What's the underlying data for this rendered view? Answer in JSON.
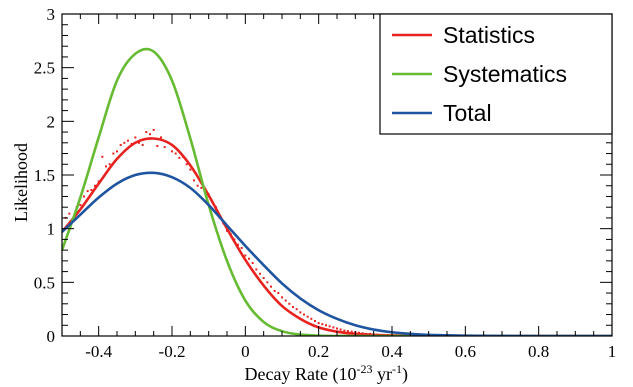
{
  "chart_data": {
    "type": "line",
    "xlabel": "Decay Rate (10",
    "xlabel_exp1": "-23",
    "xlabel_mid": " yr",
    "xlabel_exp2": "-1",
    "xlabel_end": ")",
    "ylabel": "Likelihood",
    "xlim": [
      -0.5,
      1.0
    ],
    "ylim": [
      0,
      3
    ],
    "xticks": [
      -0.4,
      -0.2,
      0,
      0.2,
      0.4,
      0.6,
      0.8,
      1
    ],
    "xtick_labels": [
      "-0.4",
      "-0.2",
      "0",
      "0.2",
      "0.4",
      "0.6",
      "0.8",
      "1"
    ],
    "yticks": [
      0,
      0.5,
      1,
      1.5,
      2,
      2.5,
      3
    ],
    "ytick_labels": [
      "0",
      "0.5",
      "1",
      "1.5",
      "2",
      "2.5",
      "3"
    ],
    "legend_position": "top-right",
    "legend": [
      "Statistics",
      "Systematics",
      "Total"
    ],
    "series": [
      {
        "name": "Statistics",
        "color": "#e8221f",
        "x": [
          -0.5,
          -0.45,
          -0.4,
          -0.35,
          -0.3,
          -0.25,
          -0.2,
          -0.15,
          -0.1,
          -0.05,
          0.0,
          0.05,
          0.1,
          0.15,
          0.2,
          0.25,
          0.3,
          0.35,
          0.4,
          0.45,
          0.5,
          0.6,
          0.7,
          0.8,
          0.9,
          1.0
        ],
        "y": [
          0.97,
          1.18,
          1.42,
          1.65,
          1.8,
          1.84,
          1.78,
          1.59,
          1.31,
          1.0,
          0.71,
          0.47,
          0.28,
          0.16,
          0.08,
          0.04,
          0.02,
          0.01,
          0.005,
          0.002,
          0.001,
          0.0,
          0.0,
          0.0,
          0.0,
          0.0
        ]
      },
      {
        "name": "Systematics",
        "color": "#66bb33",
        "x": [
          -0.5,
          -0.45,
          -0.4,
          -0.35,
          -0.3,
          -0.25,
          -0.2,
          -0.15,
          -0.1,
          -0.05,
          0.0,
          0.05,
          0.1,
          0.15,
          0.2,
          0.25,
          0.3,
          0.4,
          0.5,
          0.6,
          0.7,
          0.8,
          0.9,
          1.0
        ],
        "y": [
          0.8,
          1.29,
          1.85,
          2.38,
          2.63,
          2.65,
          2.38,
          1.84,
          1.22,
          0.7,
          0.33,
          0.13,
          0.045,
          0.013,
          0.003,
          0.001,
          0.0,
          0.0,
          0.0,
          0.0,
          0.0,
          0.0,
          0.0,
          0.0
        ]
      },
      {
        "name": "Total",
        "color": "#1f55a0",
        "x": [
          -0.5,
          -0.45,
          -0.4,
          -0.35,
          -0.3,
          -0.25,
          -0.2,
          -0.15,
          -0.1,
          -0.05,
          0.0,
          0.05,
          0.1,
          0.15,
          0.2,
          0.25,
          0.3,
          0.35,
          0.4,
          0.45,
          0.5,
          0.6,
          0.7,
          0.8,
          0.9,
          1.0
        ],
        "y": [
          0.97,
          1.13,
          1.29,
          1.42,
          1.5,
          1.52,
          1.48,
          1.38,
          1.22,
          1.03,
          0.84,
          0.66,
          0.49,
          0.35,
          0.24,
          0.16,
          0.1,
          0.06,
          0.035,
          0.02,
          0.01,
          0.003,
          0.001,
          0.0,
          0.0,
          0.0
        ]
      }
    ],
    "scatter_series": {
      "name": "Statistics samples",
      "color": "#e8221f",
      "x": [
        -0.49,
        -0.48,
        -0.47,
        -0.46,
        -0.45,
        -0.44,
        -0.43,
        -0.42,
        -0.41,
        -0.4,
        -0.39,
        -0.38,
        -0.37,
        -0.36,
        -0.35,
        -0.34,
        -0.33,
        -0.32,
        -0.31,
        -0.3,
        -0.29,
        -0.28,
        -0.27,
        -0.26,
        -0.25,
        -0.24,
        -0.23,
        -0.22,
        -0.21,
        -0.2,
        -0.19,
        -0.18,
        -0.17,
        -0.16,
        -0.15,
        -0.14,
        -0.13,
        -0.12,
        -0.11,
        -0.1,
        -0.09,
        -0.08,
        -0.07,
        -0.06,
        -0.05,
        -0.04,
        -0.03,
        -0.02,
        -0.01,
        0.0,
        0.01,
        0.02,
        0.03,
        0.04,
        0.05,
        0.06,
        0.07,
        0.08,
        0.09,
        0.1,
        0.11,
        0.12,
        0.13,
        0.14,
        0.15,
        0.16,
        0.17,
        0.18,
        0.19,
        0.2,
        0.21,
        0.22,
        0.23,
        0.24,
        0.25,
        0.26,
        0.27,
        0.28,
        0.29,
        0.3,
        0.31,
        0.32,
        0.33,
        0.34,
        0.35,
        0.36,
        0.37,
        0.38,
        0.39,
        0.4
      ],
      "y": [
        1.1,
        1.14,
        1.1,
        1.2,
        1.22,
        1.3,
        1.35,
        1.36,
        1.4,
        1.44,
        1.67,
        1.58,
        1.6,
        1.7,
        1.72,
        1.78,
        1.8,
        1.82,
        1.79,
        1.85,
        1.8,
        1.78,
        1.9,
        1.88,
        1.92,
        1.77,
        1.85,
        1.76,
        1.8,
        1.72,
        1.7,
        1.66,
        1.67,
        1.6,
        1.55,
        1.45,
        1.4,
        1.38,
        1.35,
        1.32,
        1.25,
        1.2,
        1.1,
        1.05,
        0.98,
        0.95,
        0.9,
        0.85,
        0.82,
        0.75,
        0.72,
        0.68,
        0.62,
        0.58,
        0.54,
        0.5,
        0.46,
        0.42,
        0.4,
        0.36,
        0.33,
        0.3,
        0.27,
        0.25,
        0.22,
        0.2,
        0.18,
        0.16,
        0.14,
        0.12,
        0.11,
        0.1,
        0.09,
        0.08,
        0.07,
        0.06,
        0.05,
        0.045,
        0.04,
        0.035,
        0.03,
        0.025,
        0.02,
        0.02,
        0.015,
        0.012,
        0.01,
        0.008,
        0.006,
        0.005
      ]
    }
  }
}
